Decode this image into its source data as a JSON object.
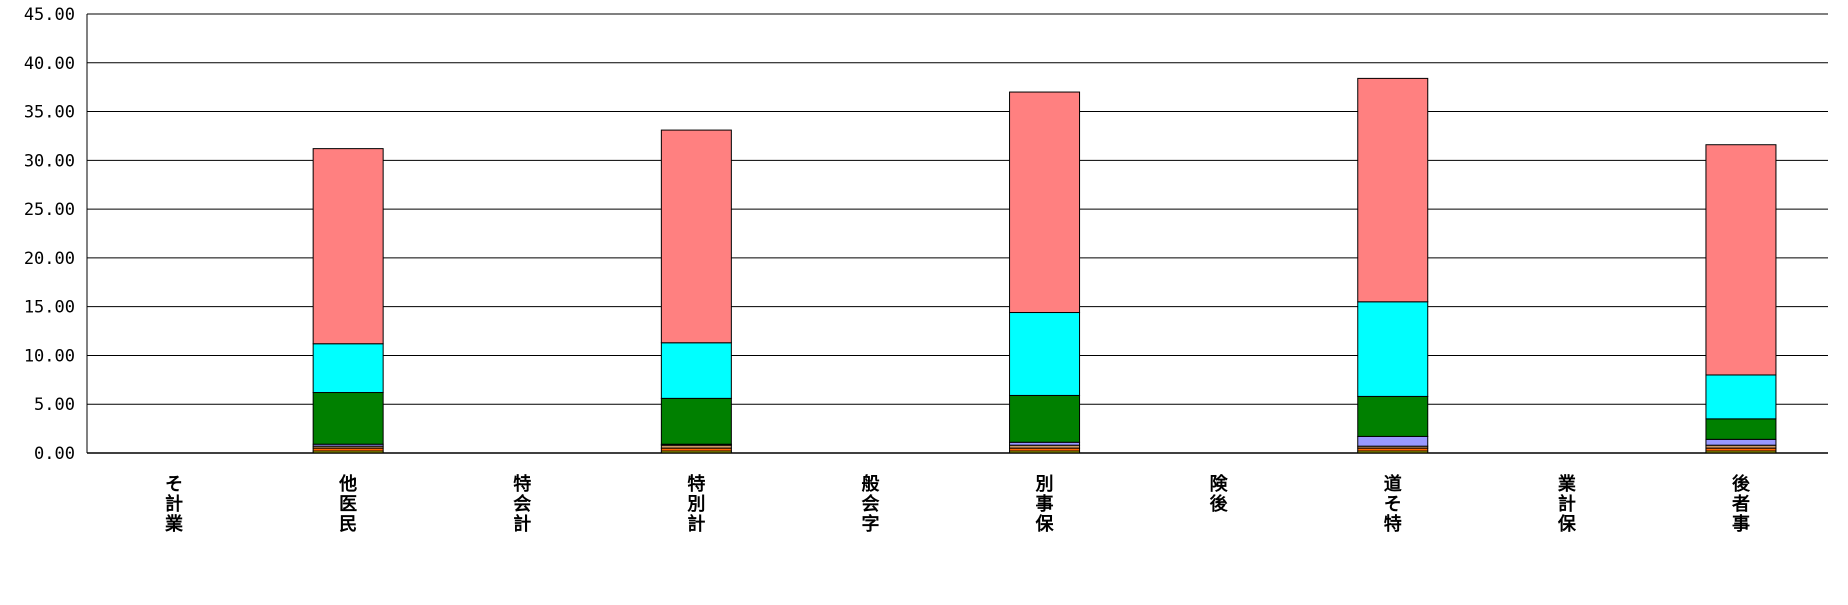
{
  "chart_data": {
    "type": "bar",
    "stacked": true,
    "title": "",
    "xlabel": "",
    "ylabel": "",
    "ylim": [
      0,
      45
    ],
    "yticks": [
      0,
      5,
      10,
      15,
      20,
      25,
      30,
      35,
      40,
      45
    ],
    "ytick_labels": [
      "0.00",
      "5.00",
      "10.00",
      "15.00",
      "20.00",
      "25.00",
      "30.00",
      "35.00",
      "40.00",
      "45.00"
    ],
    "grid": true,
    "legend": "none",
    "categories": [
      [
        "そ",
        "計",
        "業"
      ],
      [
        "他",
        "医",
        "民"
      ],
      [
        "特",
        "会",
        "計"
      ],
      [
        "特",
        "別",
        "計"
      ],
      [
        "般",
        "会",
        "字"
      ],
      [
        "別",
        "事",
        "保"
      ],
      [
        "険",
        "後"
      ],
      [
        "道",
        "そ",
        "特"
      ],
      [
        "業",
        "計",
        "保"
      ],
      [
        "後",
        "者",
        "事"
      ]
    ],
    "series": [
      {
        "color": "#ffff00",
        "values": [
          0,
          0.2,
          0,
          0.2,
          0,
          0.2,
          0,
          0.2,
          0,
          0.2
        ]
      },
      {
        "color": "#ff6600",
        "values": [
          0,
          0.3,
          0,
          0.3,
          0,
          0.3,
          0,
          0.3,
          0,
          0.3
        ]
      },
      {
        "color": "#cc9966",
        "values": [
          0,
          0.2,
          0,
          0.3,
          0,
          0.3,
          0,
          0.2,
          0,
          0.3
        ]
      },
      {
        "color": "#9999ff",
        "values": [
          0,
          0.2,
          0,
          0.1,
          0,
          0.3,
          0,
          1.0,
          0,
          0.6
        ]
      },
      {
        "color": "#008000",
        "values": [
          0,
          5.3,
          0,
          4.7,
          0,
          4.8,
          0,
          4.1,
          0,
          2.1
        ]
      },
      {
        "color": "#00ffff",
        "values": [
          0,
          5.0,
          0,
          5.7,
          0,
          8.5,
          0,
          9.7,
          0,
          4.5
        ]
      },
      {
        "color": "#ff8080",
        "values": [
          0,
          20.0,
          0,
          21.8,
          0,
          22.6,
          0,
          22.9,
          0,
          23.6
        ]
      }
    ]
  }
}
